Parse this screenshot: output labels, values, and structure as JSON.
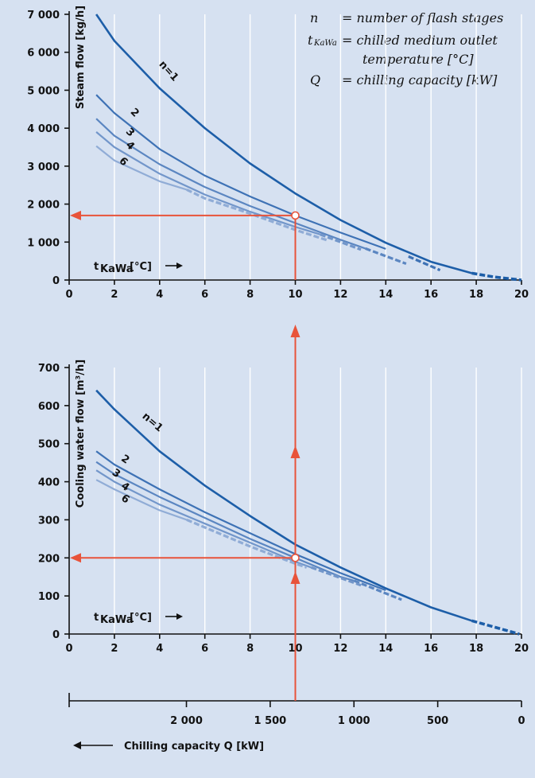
{
  "colors": {
    "background": "#d6e1f1",
    "grid": "#ffffff",
    "axis": "#111111",
    "annotation": "#e8533a",
    "n1": "#1d5ea8",
    "n2": "#3e72b5",
    "n3": "#5b86c1",
    "n4": "#7296ca",
    "n6": "#90acd6"
  },
  "legend": [
    {
      "symbol": "n",
      "sub": "",
      "text": "= number of flash stages",
      "cont": ""
    },
    {
      "symbol": "t",
      "sub": "KaWa",
      "text": "= chilled medium outlet",
      "cont": "temperature [°C]"
    },
    {
      "symbol": "Q",
      "sub": "",
      "text": "= chilling capacity [kW]",
      "cont": ""
    }
  ],
  "chart_data": [
    {
      "type": "line",
      "name": "steam",
      "ylabel": "Steam flow [kg/h]",
      "xlabel_main": "t",
      "xlabel_sub": "KaWa",
      "xlabel_unit": "[°C]",
      "xlim": [
        0,
        20
      ],
      "ylim": [
        0,
        7000
      ],
      "xticks": [
        0,
        2,
        4,
        6,
        8,
        10,
        12,
        14,
        16,
        18,
        20
      ],
      "xtick_labels": [
        "0",
        "2",
        "4",
        "6",
        "8",
        "10",
        "12",
        "14",
        "16",
        "18",
        "20"
      ],
      "yticks": [
        0,
        1000,
        2000,
        3000,
        4000,
        5000,
        6000,
        7000
      ],
      "ytick_labels": [
        "0",
        "1 000",
        "2 000",
        "3 000",
        "4 000",
        "5 000",
        "6 000",
        "7 000"
      ],
      "series": [
        {
          "key": "n1",
          "name": "n=1",
          "label_at": [
            4.3,
            5450
          ],
          "label_rot": 48,
          "dashed_from": 17.8,
          "points": [
            [
              1.2,
              7000
            ],
            [
              2,
              6300
            ],
            [
              4,
              5050
            ],
            [
              6,
              4000
            ],
            [
              8,
              3070
            ],
            [
              10,
              2280
            ],
            [
              12,
              1580
            ],
            [
              14,
              980
            ],
            [
              16,
              480
            ],
            [
              17.8,
              180
            ],
            [
              18.8,
              80
            ],
            [
              20,
              0
            ]
          ]
        },
        {
          "key": "n2",
          "name": "2",
          "label_at": [
            2.8,
            4350
          ],
          "label_rot": 45,
          "dashed_from": 14.8,
          "points": [
            [
              1.2,
              4880
            ],
            [
              2,
              4400
            ],
            [
              4,
              3450
            ],
            [
              6,
              2750
            ],
            [
              8,
              2200
            ],
            [
              10,
              1700
            ],
            [
              12,
              1250
            ],
            [
              14,
              820
            ],
            [
              15,
              620
            ],
            [
              16.4,
              260
            ]
          ]
        },
        {
          "key": "n3",
          "name": "3",
          "label_at": [
            2.6,
            3830
          ],
          "label_rot": 45,
          "dashed_from": 13.1,
          "points": [
            [
              1.2,
              4250
            ],
            [
              2,
              3800
            ],
            [
              4,
              3050
            ],
            [
              6,
              2450
            ],
            [
              8,
              1950
            ],
            [
              10,
              1500
            ],
            [
              12,
              1060
            ],
            [
              13.1,
              830
            ],
            [
              14.9,
              430
            ]
          ]
        },
        {
          "key": "n4",
          "name": "4",
          "label_at": [
            2.6,
            3480
          ],
          "label_rot": 45,
          "dashed_from": 11.1,
          "points": [
            [
              1.2,
              3900
            ],
            [
              2,
              3500
            ],
            [
              4,
              2800
            ],
            [
              6,
              2250
            ],
            [
              8,
              1800
            ],
            [
              10,
              1400
            ],
            [
              11.1,
              1200
            ],
            [
              12.9,
              800
            ]
          ]
        },
        {
          "key": "n6",
          "name": "6",
          "label_at": [
            2.3,
            3060
          ],
          "label_rot": 45,
          "dashed_from": 5.2,
          "points": [
            [
              1.2,
              3530
            ],
            [
              2,
              3150
            ],
            [
              4,
              2600
            ],
            [
              5.2,
              2380
            ],
            [
              6,
              2150
            ],
            [
              8,
              1750
            ],
            [
              10,
              1320
            ],
            [
              11.4,
              1050
            ]
          ]
        }
      ],
      "marker": [
        10,
        1700
      ]
    },
    {
      "type": "line",
      "name": "cooling",
      "ylabel": "Cooling water flow [m³/h]",
      "xlabel_main": "t",
      "xlabel_sub": "KaWa",
      "xlabel_unit": "[°C]",
      "xlim": [
        0,
        20
      ],
      "ylim": [
        0,
        700
      ],
      "xticks": [
        0,
        2,
        4,
        6,
        8,
        10,
        12,
        14,
        16,
        18,
        20
      ],
      "xtick_labels": [
        "0",
        "2",
        "4",
        "6",
        "8",
        "10",
        "12",
        "14",
        "16",
        "18",
        "20"
      ],
      "yticks": [
        0,
        100,
        200,
        300,
        400,
        500,
        600,
        700
      ],
      "ytick_labels": [
        "0",
        "100",
        "200",
        "300",
        "400",
        "500",
        "600",
        "700"
      ],
      "series": [
        {
          "key": "n1",
          "name": "n=1",
          "label_at": [
            3.6,
            550
          ],
          "label_rot": 40,
          "dashed_from": 17.8,
          "points": [
            [
              1.2,
              640
            ],
            [
              2,
              590
            ],
            [
              4,
              480
            ],
            [
              6,
              390
            ],
            [
              8,
              310
            ],
            [
              10,
              235
            ],
            [
              12,
              175
            ],
            [
              14,
              120
            ],
            [
              16,
              70
            ],
            [
              17.8,
              35
            ],
            [
              19.9,
              0
            ]
          ]
        },
        {
          "key": "n2",
          "name": "2",
          "label_at": [
            2.4,
            452
          ],
          "label_rot": 35,
          "dashed_from": 14.8,
          "points": [
            [
              1.2,
              480
            ],
            [
              2,
              445
            ],
            [
              4,
              380
            ],
            [
              6,
              320
            ],
            [
              8,
              265
            ],
            [
              10,
              210
            ],
            [
              12,
              160
            ],
            [
              14,
              115
            ],
            [
              16.5,
              62
            ]
          ]
        },
        {
          "key": "n3",
          "name": "3",
          "label_at": [
            2.0,
            415
          ],
          "label_rot": 35,
          "dashed_from": 12.6,
          "points": [
            [
              1.2,
              452
            ],
            [
              2,
              420
            ],
            [
              4,
              360
            ],
            [
              6,
              305
            ],
            [
              8,
              250
            ],
            [
              10,
              200
            ],
            [
              12,
              150
            ],
            [
              12.6,
              140
            ],
            [
              14.7,
              90
            ]
          ]
        },
        {
          "key": "n4",
          "name": "4",
          "label_at": [
            2.4,
            380
          ],
          "label_rot": 35,
          "dashed_from": 10.7,
          "points": [
            [
              1.2,
              430
            ],
            [
              2,
              400
            ],
            [
              4,
              340
            ],
            [
              6,
              290
            ],
            [
              8,
              240
            ],
            [
              10,
              190
            ],
            [
              10.7,
              175
            ],
            [
              12.9,
              128
            ]
          ]
        },
        {
          "key": "n6",
          "name": "6",
          "label_at": [
            2.4,
            348
          ],
          "label_rot": 35,
          "dashed_from": 5.2,
          "points": [
            [
              1.2,
              405
            ],
            [
              2,
              380
            ],
            [
              4,
              325
            ],
            [
              5.2,
              300
            ],
            [
              6,
              280
            ],
            [
              8,
              230
            ],
            [
              10,
              185
            ],
            [
              10.5,
              175
            ]
          ]
        }
      ],
      "marker": [
        10,
        200
      ]
    },
    {
      "type": "axis",
      "name": "capacity",
      "xlabel": "Chilling capacity Q [kW]",
      "xlim": [
        2700,
        0
      ],
      "xticks": [
        2000,
        1500,
        1000,
        500,
        0
      ],
      "xtick_labels": [
        "2 000",
        "1 500",
        "1 000",
        "500",
        "0"
      ]
    }
  ]
}
